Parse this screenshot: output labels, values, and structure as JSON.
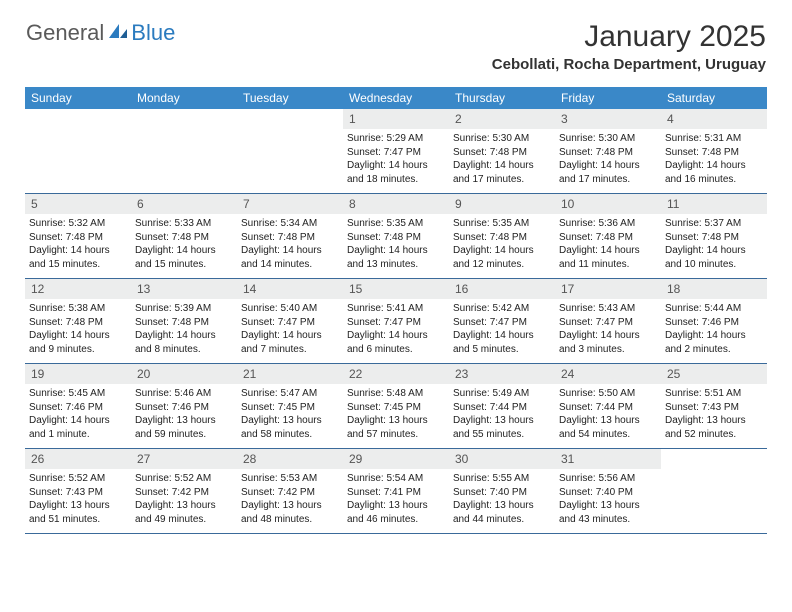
{
  "logo": {
    "text1": "General",
    "text2": "Blue"
  },
  "title": "January 2025",
  "location": "Cebollati, Rocha Department, Uruguay",
  "day_headers": [
    "Sunday",
    "Monday",
    "Tuesday",
    "Wednesday",
    "Thursday",
    "Friday",
    "Saturday"
  ],
  "colors": {
    "header_band": "#3a88c8",
    "week_border": "#3a6a9a",
    "daynum_bg": "#eceded",
    "logo_gray": "#5a5a5a",
    "logo_blue": "#2b7bbf"
  },
  "weeks": [
    [
      null,
      null,
      null,
      {
        "n": "1",
        "sr": "5:29 AM",
        "ss": "7:47 PM",
        "dl": "14 hours and 18 minutes."
      },
      {
        "n": "2",
        "sr": "5:30 AM",
        "ss": "7:48 PM",
        "dl": "14 hours and 17 minutes."
      },
      {
        "n": "3",
        "sr": "5:30 AM",
        "ss": "7:48 PM",
        "dl": "14 hours and 17 minutes."
      },
      {
        "n": "4",
        "sr": "5:31 AM",
        "ss": "7:48 PM",
        "dl": "14 hours and 16 minutes."
      }
    ],
    [
      {
        "n": "5",
        "sr": "5:32 AM",
        "ss": "7:48 PM",
        "dl": "14 hours and 15 minutes."
      },
      {
        "n": "6",
        "sr": "5:33 AM",
        "ss": "7:48 PM",
        "dl": "14 hours and 15 minutes."
      },
      {
        "n": "7",
        "sr": "5:34 AM",
        "ss": "7:48 PM",
        "dl": "14 hours and 14 minutes."
      },
      {
        "n": "8",
        "sr": "5:35 AM",
        "ss": "7:48 PM",
        "dl": "14 hours and 13 minutes."
      },
      {
        "n": "9",
        "sr": "5:35 AM",
        "ss": "7:48 PM",
        "dl": "14 hours and 12 minutes."
      },
      {
        "n": "10",
        "sr": "5:36 AM",
        "ss": "7:48 PM",
        "dl": "14 hours and 11 minutes."
      },
      {
        "n": "11",
        "sr": "5:37 AM",
        "ss": "7:48 PM",
        "dl": "14 hours and 10 minutes."
      }
    ],
    [
      {
        "n": "12",
        "sr": "5:38 AM",
        "ss": "7:48 PM",
        "dl": "14 hours and 9 minutes."
      },
      {
        "n": "13",
        "sr": "5:39 AM",
        "ss": "7:48 PM",
        "dl": "14 hours and 8 minutes."
      },
      {
        "n": "14",
        "sr": "5:40 AM",
        "ss": "7:47 PM",
        "dl": "14 hours and 7 minutes."
      },
      {
        "n": "15",
        "sr": "5:41 AM",
        "ss": "7:47 PM",
        "dl": "14 hours and 6 minutes."
      },
      {
        "n": "16",
        "sr": "5:42 AM",
        "ss": "7:47 PM",
        "dl": "14 hours and 5 minutes."
      },
      {
        "n": "17",
        "sr": "5:43 AM",
        "ss": "7:47 PM",
        "dl": "14 hours and 3 minutes."
      },
      {
        "n": "18",
        "sr": "5:44 AM",
        "ss": "7:46 PM",
        "dl": "14 hours and 2 minutes."
      }
    ],
    [
      {
        "n": "19",
        "sr": "5:45 AM",
        "ss": "7:46 PM",
        "dl": "14 hours and 1 minute."
      },
      {
        "n": "20",
        "sr": "5:46 AM",
        "ss": "7:46 PM",
        "dl": "13 hours and 59 minutes."
      },
      {
        "n": "21",
        "sr": "5:47 AM",
        "ss": "7:45 PM",
        "dl": "13 hours and 58 minutes."
      },
      {
        "n": "22",
        "sr": "5:48 AM",
        "ss": "7:45 PM",
        "dl": "13 hours and 57 minutes."
      },
      {
        "n": "23",
        "sr": "5:49 AM",
        "ss": "7:44 PM",
        "dl": "13 hours and 55 minutes."
      },
      {
        "n": "24",
        "sr": "5:50 AM",
        "ss": "7:44 PM",
        "dl": "13 hours and 54 minutes."
      },
      {
        "n": "25",
        "sr": "5:51 AM",
        "ss": "7:43 PM",
        "dl": "13 hours and 52 minutes."
      }
    ],
    [
      {
        "n": "26",
        "sr": "5:52 AM",
        "ss": "7:43 PM",
        "dl": "13 hours and 51 minutes."
      },
      {
        "n": "27",
        "sr": "5:52 AM",
        "ss": "7:42 PM",
        "dl": "13 hours and 49 minutes."
      },
      {
        "n": "28",
        "sr": "5:53 AM",
        "ss": "7:42 PM",
        "dl": "13 hours and 48 minutes."
      },
      {
        "n": "29",
        "sr": "5:54 AM",
        "ss": "7:41 PM",
        "dl": "13 hours and 46 minutes."
      },
      {
        "n": "30",
        "sr": "5:55 AM",
        "ss": "7:40 PM",
        "dl": "13 hours and 44 minutes."
      },
      {
        "n": "31",
        "sr": "5:56 AM",
        "ss": "7:40 PM",
        "dl": "13 hours and 43 minutes."
      },
      null
    ]
  ],
  "labels": {
    "sunrise": "Sunrise:",
    "sunset": "Sunset:",
    "daylight": "Daylight:"
  }
}
